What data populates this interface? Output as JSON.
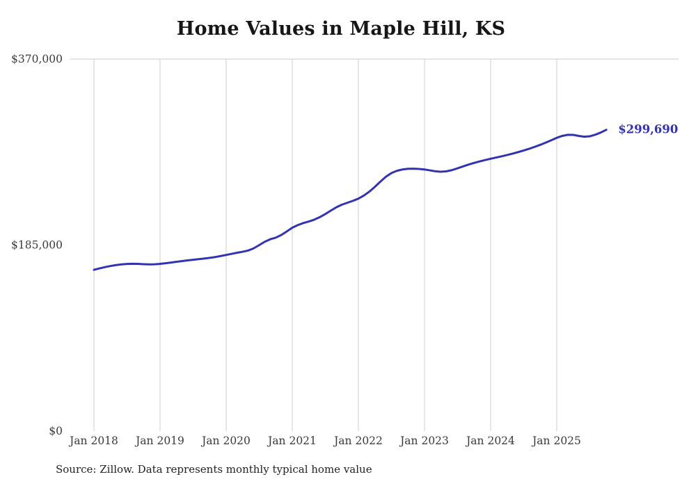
{
  "title": "Home Values in Maple Hill, KS",
  "source_note": "Source: Zillow. Data represents monthly typical home value",
  "colors": {
    "line": "#3333b2",
    "end_label": "#3333b2",
    "grid": "#cccccc",
    "axis_text": "#3a3a3a",
    "title_text": "#161616"
  },
  "chart_data": {
    "type": "line",
    "title": "Home Values in Maple Hill, KS",
    "xlabel": "",
    "ylabel": "",
    "ylim": [
      0,
      370000
    ],
    "grid": "vertical-yearly",
    "legend": "none",
    "x_start": "Jan 2018",
    "x_end": "Oct 2025",
    "x_tick_labels": [
      "Jan 2018",
      "Jan 2019",
      "Jan 2020",
      "Jan 2021",
      "Jan 2022",
      "Jan 2023",
      "Jan 2024",
      "Jan 2025"
    ],
    "y_ticks": [
      {
        "label": "$0",
        "value": 0
      },
      {
        "label": "$185,000",
        "value": 185000
      },
      {
        "label": "$370,000",
        "value": 370000
      }
    ],
    "end_label": "$299,690",
    "series": [
      {
        "name": "Monthly typical home value",
        "values": [
          160400,
          161800,
          163100,
          164200,
          165100,
          165800,
          166200,
          166400,
          166300,
          166000,
          165800,
          165900,
          166300,
          166900,
          167600,
          168400,
          169100,
          169800,
          170400,
          171000,
          171600,
          172300,
          173100,
          174100,
          175200,
          176300,
          177400,
          178400,
          179600,
          181800,
          185000,
          188300,
          190800,
          192400,
          195000,
          198600,
          202300,
          204900,
          206900,
          208500,
          210300,
          212800,
          215900,
          219300,
          222600,
          225200,
          227100,
          229000,
          231200,
          234300,
          238200,
          243000,
          248200,
          253000,
          256700,
          258900,
          260200,
          260900,
          261000,
          260700,
          260200,
          259300,
          258400,
          258000,
          258400,
          259600,
          261400,
          263300,
          265100,
          266700,
          268200,
          269600,
          270900,
          272100,
          273300,
          274600,
          276000,
          277500,
          279100,
          280800,
          282700,
          284700,
          286900,
          289300,
          291700,
          293600,
          294700,
          294600,
          293600,
          292800,
          293200,
          294800,
          297000,
          299690
        ]
      }
    ],
    "source": "Source: Zillow. Data represents monthly typical home value"
  }
}
